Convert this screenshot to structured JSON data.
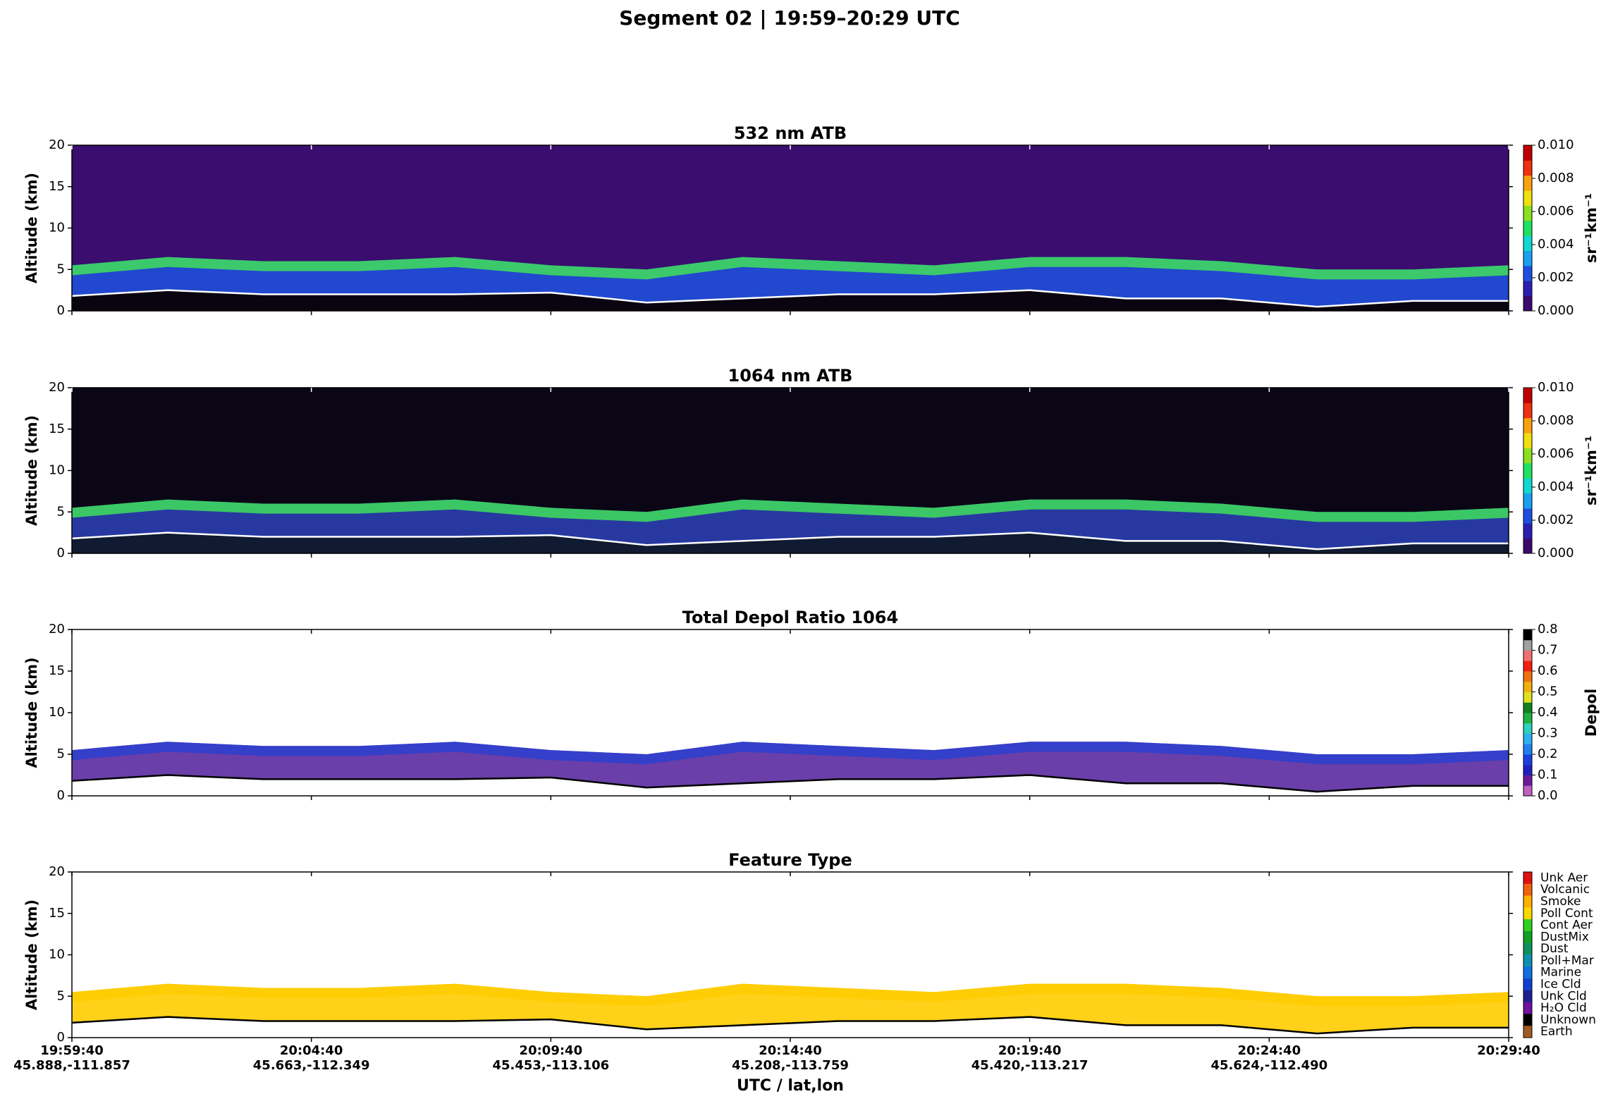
{
  "title": "Segment 02  |  19:59–20:29 UTC",
  "chart_data": [
    {
      "type": "curtain",
      "title": "532 nm ATB",
      "ylabel": "Altitude (km)",
      "ylim": [
        0,
        20
      ],
      "yticks": [
        0,
        5,
        10,
        15,
        20
      ],
      "xlim": [
        0,
        30
      ],
      "x": [
        0,
        2,
        4,
        6,
        8,
        10,
        12,
        14,
        16,
        18,
        20,
        22,
        24,
        26,
        28,
        30
      ],
      "layer_top": [
        5.5,
        6.5,
        6,
        6,
        6.5,
        5.5,
        5,
        6.5,
        6,
        5.5,
        6.5,
        6.5,
        6,
        5,
        5,
        5.5
      ],
      "surface": [
        1.8,
        2.5,
        2,
        2,
        2,
        2.2,
        1,
        1.5,
        2,
        2,
        2.5,
        1.5,
        1.5,
        0.5,
        1.2,
        1.2
      ],
      "background": "#3a0d6e",
      "fill": "#1f4fd8",
      "accent": "#3fe05a",
      "ground": "#0a0410",
      "line_color": "#ffffff",
      "colormap": [
        "#3b0a6e",
        "#2a1fb0",
        "#1f4fe0",
        "#1aa0f0",
        "#10d8d0",
        "#20e060",
        "#8ce020",
        "#f0e010",
        "#f8a010",
        "#f03010",
        "#c00000"
      ],
      "clim": [
        0,
        0.01
      ],
      "cticks": [
        {
          "value": 0,
          "label": "0.000"
        },
        {
          "value": 0.002,
          "label": "0.002"
        },
        {
          "value": 0.004,
          "label": "0.004"
        },
        {
          "value": 0.006,
          "label": "0.006"
        },
        {
          "value": 0.008,
          "label": "0.008"
        },
        {
          "value": 0.01,
          "label": "0.010"
        }
      ],
      "clabel": "sr⁻¹km⁻¹"
    },
    {
      "type": "curtain",
      "title": "1064 nm ATB",
      "ylabel": "Altitude (km)",
      "ylim": [
        0,
        20
      ],
      "yticks": [
        0,
        5,
        10,
        15,
        20
      ],
      "xlim": [
        0,
        30
      ],
      "x": [
        0,
        2,
        4,
        6,
        8,
        10,
        12,
        14,
        16,
        18,
        20,
        22,
        24,
        26,
        28,
        30
      ],
      "layer_top": [
        5.5,
        6.5,
        6,
        6,
        6.5,
        5.5,
        5,
        6.5,
        6,
        5.5,
        6.5,
        6.5,
        6,
        5,
        5,
        5.5
      ],
      "surface": [
        1.8,
        2.5,
        2,
        2,
        2,
        2.2,
        1,
        1.5,
        2,
        2,
        2.5,
        1.5,
        1.5,
        0.5,
        1.2,
        1.2
      ],
      "background": "#0b0616",
      "fill": "#2a3fb0",
      "accent": "#3fe05a",
      "ground": "#101a30",
      "line_color": "#ffffff",
      "colormap": [
        "#3b0a6e",
        "#2a1fb0",
        "#1f4fe0",
        "#1aa0f0",
        "#10d8d0",
        "#20e060",
        "#8ce020",
        "#f0e010",
        "#f8a010",
        "#f03010",
        "#c00000"
      ],
      "clim": [
        0,
        0.01
      ],
      "cticks": [
        {
          "value": 0,
          "label": "0.000"
        },
        {
          "value": 0.002,
          "label": "0.002"
        },
        {
          "value": 0.004,
          "label": "0.004"
        },
        {
          "value": 0.006,
          "label": "0.006"
        },
        {
          "value": 0.008,
          "label": "0.008"
        },
        {
          "value": 0.01,
          "label": "0.010"
        }
      ],
      "clabel": "sr⁻¹km⁻¹"
    },
    {
      "type": "curtain",
      "title": "Total Depol Ratio 1064",
      "ylabel": "Altitude (km)",
      "ylim": [
        0,
        20
      ],
      "yticks": [
        0,
        5,
        10,
        15,
        20
      ],
      "xlim": [
        0,
        30
      ],
      "x": [
        0,
        2,
        4,
        6,
        8,
        10,
        12,
        14,
        16,
        18,
        20,
        22,
        24,
        26,
        28,
        30
      ],
      "layer_top": [
        5.5,
        6.5,
        6,
        6,
        6.5,
        5.5,
        5,
        6.5,
        6,
        5.5,
        6.5,
        6.5,
        6,
        5,
        5,
        5.5
      ],
      "surface": [
        1.8,
        2.5,
        2,
        2,
        2,
        2.2,
        1,
        1.5,
        2,
        2,
        2.5,
        1.5,
        1.5,
        0.5,
        1.2,
        1.2
      ],
      "background": "#ffffff",
      "fill": "#5a2aa0",
      "accent": "#2a3fd0",
      "ground": "#ffffff",
      "line_color": "#000000",
      "colormap": [
        "#c060c0",
        "#6a1a9a",
        "#2020c0",
        "#1a40e0",
        "#2080f0",
        "#30b0f0",
        "#30d0c0",
        "#20b040",
        "#108020",
        "#e0e020",
        "#f0b010",
        "#f07010",
        "#f02010",
        "#f07070",
        "#a0a0a0",
        "#000000"
      ],
      "clim": [
        0,
        0.8
      ],
      "cticks": [
        {
          "value": 0,
          "label": "0.0"
        },
        {
          "value": 0.1,
          "label": "0.1"
        },
        {
          "value": 0.2,
          "label": "0.2"
        },
        {
          "value": 0.3,
          "label": "0.3"
        },
        {
          "value": 0.4,
          "label": "0.4"
        },
        {
          "value": 0.5,
          "label": "0.5"
        },
        {
          "value": 0.6,
          "label": "0.6"
        },
        {
          "value": 0.7,
          "label": "0.7"
        },
        {
          "value": 0.8,
          "label": "0.8"
        }
      ],
      "clabel": "Depol"
    },
    {
      "type": "curtain",
      "title": "Feature Type",
      "ylabel": "Altitude (km)",
      "ylim": [
        0,
        20
      ],
      "yticks": [
        0,
        5,
        10,
        15,
        20
      ],
      "xlim": [
        0,
        30
      ],
      "x": [
        0,
        2,
        4,
        6,
        8,
        10,
        12,
        14,
        16,
        18,
        20,
        22,
        24,
        26,
        28,
        30
      ],
      "layer_top": [
        5.5,
        6.5,
        6,
        6,
        6.5,
        5.5,
        5,
        6.5,
        6,
        5.5,
        6.5,
        6.5,
        6,
        5,
        5,
        5.5
      ],
      "surface": [
        1.8,
        2.5,
        2,
        2,
        2,
        2.2,
        1,
        1.5,
        2,
        2,
        2.5,
        1.5,
        1.5,
        0.5,
        1.2,
        1.2
      ],
      "background": "#ffffff",
      "fill": "#ffcc00",
      "accent": "#ffcc00",
      "ground": "#ffffff",
      "line_color": "#000000",
      "legend": {
        "labels": [
          "Unk Aer",
          "Volcanic",
          "Smoke",
          "Poll Cont",
          "Cont Aer",
          "DustMix",
          "Dust",
          "Poll+Mar",
          "Marine",
          "Ice Cld",
          "Unk Cld",
          "H₂O Cld",
          "Unknown",
          "Earth"
        ],
        "colors": [
          "#e01010",
          "#f06010",
          "#ffb000",
          "#ffd800",
          "#30d020",
          "#10a020",
          "#109060",
          "#1090b0",
          "#1070e0",
          "#1040d0",
          "#202090",
          "#7010a0",
          "#000000",
          "#a05a20"
        ]
      },
      "xticks": [
        {
          "value": 0,
          "label": "19:59:40"
        },
        {
          "value": 5,
          "label": "20:04:40"
        },
        {
          "value": 10,
          "label": "20:09:40"
        },
        {
          "value": 15,
          "label": "20:14:40"
        },
        {
          "value": 20,
          "label": "20:19:40"
        },
        {
          "value": 25,
          "label": "20:24:40"
        },
        {
          "value": 30,
          "label": "20:29:40"
        }
      ],
      "xtick_coords": [
        "45.888,-111.857",
        "45.663,-112.349",
        "45.453,-113.106",
        "45.208,-113.759",
        "45.420,-113.217",
        "45.624,-112.490",
        null
      ],
      "xlabel": "UTC / lat,lon"
    }
  ]
}
